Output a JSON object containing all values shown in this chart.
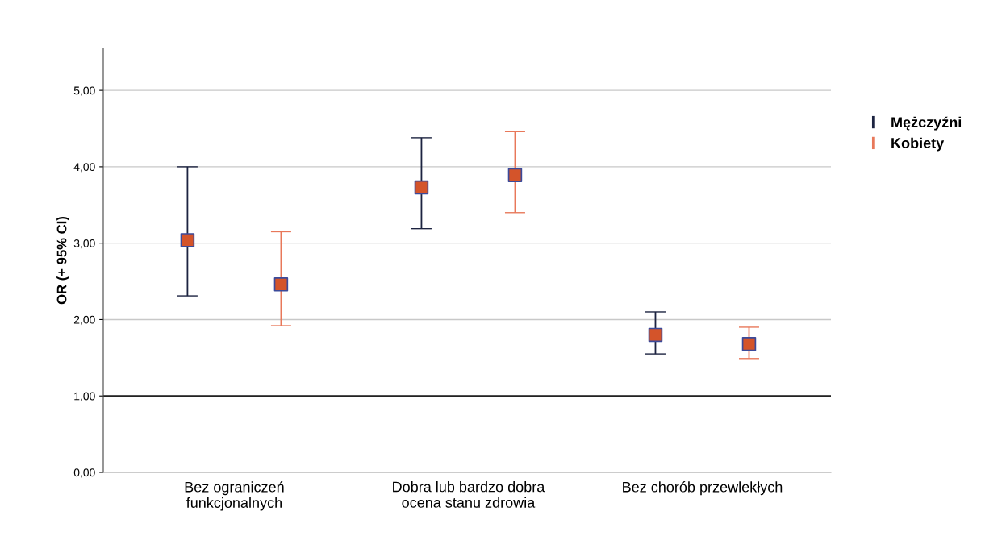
{
  "chart_data": {
    "type": "scatter",
    "ylabel": "OR (+ 95% CI)",
    "categories": [
      "Bez ograniczeń\nfunkcjonalnych",
      "Dobra lub bardzo dobra\nocena stanu zdrowia",
      "Bez chorób przewlekłych"
    ],
    "series": [
      {
        "name": "Mężczyźni",
        "color": "#1c2340",
        "colors": [
          "#d4542a",
          "#d4542a",
          "#d4542a"
        ],
        "values": [
          3.04,
          3.73,
          1.8
        ],
        "errors": [
          [
            2.31,
            4.0
          ],
          [
            3.19,
            4.38
          ],
          [
            1.55,
            2.1
          ]
        ]
      },
      {
        "name": "Kobiety",
        "color": "#e8785a",
        "colors": [
          "#d4542a",
          "#d4542a",
          "#d4542a"
        ],
        "values": [
          2.46,
          3.89,
          1.68
        ],
        "errors": [
          [
            1.92,
            3.15
          ],
          [
            3.4,
            4.46
          ],
          [
            1.49,
            1.9
          ]
        ]
      }
    ],
    "ylim": [
      0,
      5.55
    ],
    "yticks": [
      {
        "value": 0,
        "label": "0,00"
      },
      {
        "value": 1,
        "label": "1,00"
      },
      {
        "value": 2,
        "label": "2,00"
      },
      {
        "value": 3,
        "label": "3,00"
      },
      {
        "value": 4,
        "label": "4,00"
      },
      {
        "value": 5,
        "label": "5,00"
      }
    ],
    "ref_lines": [
      {
        "axis": "y",
        "value": 1,
        "color": "#222222"
      }
    ],
    "grid": "y",
    "legend": "top right",
    "marker": "square"
  }
}
